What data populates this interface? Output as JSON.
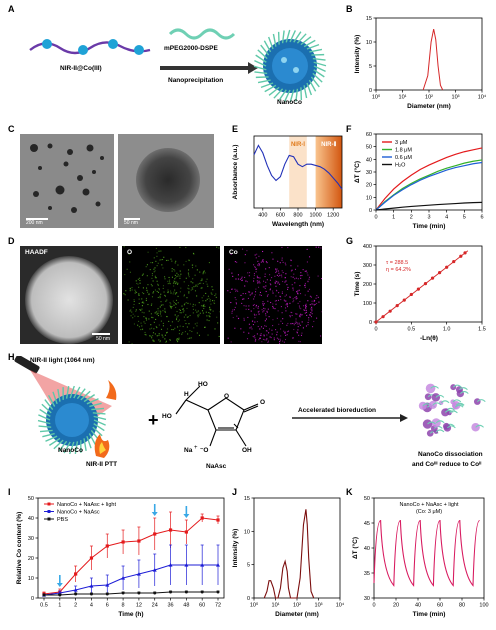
{
  "panels": {
    "A": "A",
    "B": "B",
    "C": "C",
    "D": "D",
    "E": "E",
    "F": "F",
    "G": "G",
    "H": "H",
    "I": "I",
    "J": "J",
    "K": "K"
  },
  "schematic_a": {
    "peg_label": "mPEG2000-DSPE",
    "polymer_label": "NIR-II@Co(III)",
    "arrow_label": "Nanoprecipitation",
    "product_label": "NanoCo"
  },
  "tem": {
    "scale_left": "200 nm",
    "scale_right": "50 nm"
  },
  "eds": {
    "haadf": "HAADF",
    "o": "O",
    "co": "Co",
    "scale": "50 nm",
    "colors": {
      "o": "#4c9b1c",
      "co": "#c21bc2"
    }
  },
  "schematic_h": {
    "light_label": "NIR-II light (1064 nm)",
    "nanoco_label": "NanoCo",
    "ptt_label": "NIR-II PTT",
    "plus": "+",
    "naasc_label": "NaAsc",
    "arrow_label": "Accelerated bioreduction",
    "result_line1": "NanoCo dissociation",
    "result_line2": "and Coᴵᴵᴵ reduce to Coᴵᴵ",
    "ho": "HO",
    "h": "H",
    "oh": "OH",
    "o_ring": "O",
    "o_dbl": "O",
    "na": "Na",
    "minus_o": "⁻O",
    "plus_sign": "+"
  },
  "chart_data": [
    {
      "panel": "B",
      "type": "line",
      "xlabel": "Diameter (nm)",
      "ylabel": "Intensity (%)",
      "xscale": "log",
      "xlim": [
        1,
        10000
      ],
      "ylim": [
        0,
        15
      ],
      "xticks": [
        "10⁰",
        "10¹",
        "10²",
        "10³",
        "10⁴"
      ],
      "yticks": [
        "0",
        "5",
        "10",
        "15"
      ],
      "x": [
        60,
        90,
        120,
        150,
        180,
        220,
        270,
        330
      ],
      "values": [
        0,
        3,
        10,
        12.7,
        10.5,
        5,
        1,
        0
      ],
      "color": "#d62728"
    },
    {
      "panel": "E",
      "type": "line",
      "xlabel": "Wavelength (nm)",
      "ylabel": "Absorbance (a.u.)",
      "xlim": [
        300,
        1300
      ],
      "ylim": [
        0,
        1.15
      ],
      "xticks": [
        "400",
        "600",
        "800",
        "1000",
        "1200"
      ],
      "regions": [
        {
          "label": "NIR-Ⅰ",
          "from": 700,
          "to": 900
        },
        {
          "label": "NIR-Ⅱ",
          "from": 1000,
          "to": 1300
        }
      ],
      "x": [
        300,
        350,
        400,
        450,
        500,
        550,
        600,
        650,
        700,
        750,
        800,
        850,
        900,
        950,
        1000,
        1050,
        1100,
        1150,
        1200,
        1250,
        1300
      ],
      "values": [
        0.85,
        1.0,
        0.88,
        0.68,
        0.52,
        0.44,
        0.5,
        0.7,
        0.84,
        0.82,
        0.7,
        0.66,
        0.7,
        0.7,
        0.68,
        0.66,
        0.62,
        0.56,
        0.48,
        0.4,
        0.3
      ],
      "color": "#2231b8"
    },
    {
      "panel": "F",
      "type": "line",
      "xlabel": "Time (min)",
      "ylabel": "ΔT (°C)",
      "xlim": [
        0,
        6
      ],
      "ylim": [
        0,
        60
      ],
      "xticks": [
        "0",
        "1",
        "2",
        "3",
        "4",
        "5",
        "6"
      ],
      "yticks": [
        "0",
        "10",
        "20",
        "30",
        "40",
        "50",
        "60"
      ],
      "x": [
        0,
        0.5,
        1,
        1.5,
        2,
        2.5,
        3,
        3.5,
        4,
        4.5,
        5,
        5.5,
        6
      ],
      "series": [
        {
          "name": "3 μM",
          "color": "#e41a1c",
          "values": [
            0,
            9,
            16.5,
            22.5,
            27.5,
            32,
            35.5,
            38.5,
            41.5,
            44,
            46,
            47.5,
            49
          ]
        },
        {
          "name": "1.8 μM",
          "color": "#33b02a",
          "values": [
            0,
            6.5,
            12,
            17,
            21,
            24.5,
            27.5,
            30.5,
            33,
            35,
            37,
            38.5,
            39.5
          ]
        },
        {
          "name": "0.6 μM",
          "color": "#1f5fd6",
          "values": [
            0,
            6,
            11.5,
            16,
            20,
            23.5,
            26.5,
            29,
            31.5,
            33.5,
            35,
            36.5,
            37.5
          ]
        },
        {
          "name": "H₂O",
          "color": "#111111",
          "values": [
            0,
            0.8,
            1.5,
            2.2,
            2.8,
            3.3,
            3.8,
            4.3,
            4.7,
            5.1,
            5.5,
            5.8,
            6
          ]
        }
      ]
    },
    {
      "panel": "G",
      "type": "scatter",
      "xlabel": "-Ln(θ)",
      "ylabel": "Time (s)",
      "xlim": [
        0,
        1.5
      ],
      "ylim": [
        0,
        400
      ],
      "xticks": [
        "0",
        "0.5",
        "1.0",
        "1.5"
      ],
      "yticks": [
        "0",
        "100",
        "200",
        "300",
        "400"
      ],
      "annotations": [
        "τ = 288.5",
        "η = 64.2%"
      ],
      "x": [
        0,
        0.1,
        0.2,
        0.3,
        0.4,
        0.5,
        0.6,
        0.7,
        0.8,
        0.9,
        1.0,
        1.1,
        1.2,
        1.26
      ],
      "values": [
        0,
        28,
        57,
        86,
        115,
        145,
        173,
        202,
        231,
        260,
        288,
        318,
        346,
        364
      ],
      "fit": [
        [
          0,
          0
        ],
        [
          1.3,
          375
        ]
      ],
      "color": "#d62728"
    },
    {
      "panel": "I",
      "type": "line",
      "xlabel": "Time (h)",
      "ylabel": "Relative Co content (%)",
      "ylim": [
        0,
        50
      ],
      "categories": [
        "0.5",
        "1",
        "2",
        "4",
        "6",
        "8",
        "12",
        "24",
        "36",
        "48",
        "60",
        "72"
      ],
      "yticks": [
        "0",
        "10",
        "20",
        "30",
        "40",
        "50"
      ],
      "arrows_at": [
        "1",
        "24",
        "48"
      ],
      "series": [
        {
          "name": "NanoCo + NaAsc + light",
          "color": "#e41a1c",
          "marker": "square",
          "values": [
            2,
            3,
            12,
            20,
            26,
            28,
            28.5,
            32,
            34,
            33,
            40,
            39
          ],
          "errors": [
            1,
            1.5,
            4,
            6,
            6,
            6,
            7,
            8,
            9,
            6,
            2,
            2
          ]
        },
        {
          "name": "NanoCo + NaAsc",
          "color": "#1d1dd6",
          "marker": "triangle",
          "values": [
            1.5,
            2.5,
            4,
            6,
            6.5,
            10,
            12,
            14,
            16.5,
            16.5,
            16.5,
            16.5
          ],
          "errors": [
            0.5,
            1,
            2,
            4,
            5,
            6,
            7,
            8,
            10,
            10,
            10,
            10
          ]
        },
        {
          "name": "PBS",
          "color": "#111111",
          "marker": "circle",
          "values": [
            1.5,
            1.5,
            2,
            2,
            2,
            2.5,
            2.5,
            2.5,
            3,
            3,
            3,
            3
          ],
          "errors": [
            0.5,
            0.5,
            0.5,
            0.5,
            0.5,
            0.5,
            0.5,
            0.5,
            0.5,
            0.5,
            0.5,
            0.5
          ]
        }
      ]
    },
    {
      "panel": "J",
      "type": "line",
      "xlabel": "Diameter (nm)",
      "ylabel": "Intensity (%)",
      "xscale": "log",
      "xlim": [
        1,
        10000
      ],
      "ylim": [
        0,
        15
      ],
      "xticks": [
        "10⁰",
        "10¹",
        "10²",
        "10³",
        "10⁴"
      ],
      "yticks": [
        "0",
        "5",
        "10",
        "15"
      ],
      "x": [
        3,
        4,
        5,
        6,
        8,
        10,
        13,
        17,
        22,
        28,
        35,
        40,
        50,
        70,
        100,
        140,
        200,
        260,
        300,
        350,
        450,
        600
      ],
      "values": [
        0,
        1,
        2.6,
        2.6,
        1.5,
        0,
        0,
        1.5,
        4.5,
        5.5,
        4,
        1.5,
        0,
        0,
        0,
        3,
        11,
        13.3,
        11,
        6,
        1,
        0
      ],
      "color": "#7b0e0e"
    },
    {
      "panel": "K",
      "type": "line",
      "title": "NanoCo + NaAsc + light",
      "subtitle": "(Co: 3 μM)",
      "xlabel": "Time (min)",
      "ylabel": "ΔT (°C)",
      "xlim": [
        0,
        100
      ],
      "ylim": [
        30,
        50
      ],
      "xticks": [
        "0",
        "20",
        "40",
        "60",
        "80",
        "100"
      ],
      "yticks": [
        "30",
        "35",
        "40",
        "45",
        "50"
      ],
      "x": [
        0,
        6,
        18,
        24,
        36,
        42,
        54,
        60,
        72,
        78,
        90,
        96
      ],
      "values": [
        33,
        45.5,
        32.5,
        45.5,
        32.5,
        45.5,
        32.5,
        45.5,
        32.5,
        45.5,
        32.5,
        45.5
      ],
      "color": "#d81b60"
    }
  ]
}
